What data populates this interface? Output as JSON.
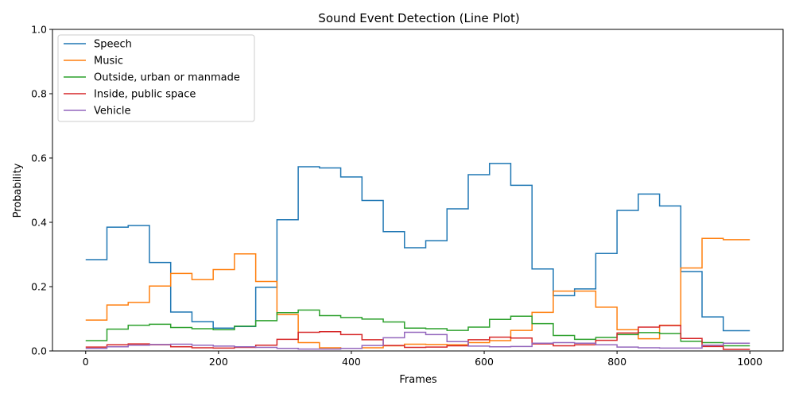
{
  "chart_data": {
    "type": "line",
    "title": "Sound Event Detection (Line Plot)",
    "xlabel": "Frames",
    "ylabel": "Probability",
    "xlim": [
      -50,
      1050
    ],
    "ylim": [
      0.0,
      1.0
    ],
    "x_ticks": [
      0,
      200,
      400,
      600,
      800,
      1000
    ],
    "x_tick_labels": [
      "0",
      "200",
      "400",
      "600",
      "800",
      "1000"
    ],
    "y_ticks": [
      0.0,
      0.2,
      0.4,
      0.6,
      0.8,
      1.0
    ],
    "y_tick_labels": [
      "0.0",
      "0.2",
      "0.4",
      "0.6",
      "0.8",
      "1.0"
    ],
    "grid": false,
    "legend_position": "top-left",
    "step_edges": [
      0,
      32,
      64,
      96,
      128,
      160,
      192,
      224,
      256,
      288,
      320,
      352,
      384,
      416,
      448,
      480,
      512,
      544,
      576,
      608,
      640,
      672,
      704,
      736,
      768,
      800,
      832,
      864,
      896,
      928,
      960,
      1000
    ],
    "series": [
      {
        "name": "Speech",
        "color": "#1f77b4",
        "values": [
          0.284,
          0.385,
          0.39,
          0.275,
          0.121,
          0.091,
          0.071,
          0.076,
          0.198,
          0.408,
          0.573,
          0.569,
          0.541,
          0.468,
          0.371,
          0.321,
          0.343,
          0.442,
          0.548,
          0.583,
          0.515,
          0.255,
          0.172,
          0.193,
          0.303,
          0.437,
          0.488,
          0.451,
          0.247,
          0.106,
          0.063
        ]
      },
      {
        "name": "Music",
        "color": "#ff7f0e",
        "values": [
          0.096,
          0.143,
          0.151,
          0.202,
          0.241,
          0.222,
          0.253,
          0.302,
          0.216,
          0.113,
          0.026,
          0.01,
          0.008,
          0.01,
          0.016,
          0.021,
          0.02,
          0.019,
          0.026,
          0.032,
          0.064,
          0.12,
          0.186,
          0.186,
          0.136,
          0.066,
          0.038,
          0.08,
          0.258,
          0.35,
          0.346
        ]
      },
      {
        "name": "Outside, urban or manmade",
        "color": "#2ca02c",
        "values": [
          0.032,
          0.068,
          0.08,
          0.083,
          0.073,
          0.069,
          0.066,
          0.077,
          0.094,
          0.119,
          0.127,
          0.11,
          0.104,
          0.099,
          0.09,
          0.071,
          0.069,
          0.064,
          0.074,
          0.098,
          0.108,
          0.085,
          0.048,
          0.036,
          0.042,
          0.051,
          0.057,
          0.054,
          0.03,
          0.026,
          0.016
        ]
      },
      {
        "name": "Inside, public space",
        "color": "#d62728",
        "values": [
          0.012,
          0.019,
          0.022,
          0.019,
          0.013,
          0.01,
          0.009,
          0.011,
          0.018,
          0.036,
          0.058,
          0.06,
          0.051,
          0.035,
          0.017,
          0.011,
          0.012,
          0.016,
          0.035,
          0.043,
          0.04,
          0.022,
          0.016,
          0.019,
          0.033,
          0.056,
          0.074,
          0.079,
          0.039,
          0.014,
          0.005
        ]
      },
      {
        "name": "Vehicle",
        "color": "#9467bd",
        "values": [
          0.008,
          0.013,
          0.018,
          0.02,
          0.021,
          0.018,
          0.015,
          0.013,
          0.011,
          0.008,
          0.006,
          0.006,
          0.008,
          0.017,
          0.041,
          0.058,
          0.051,
          0.029,
          0.015,
          0.013,
          0.014,
          0.024,
          0.026,
          0.024,
          0.019,
          0.012,
          0.01,
          0.009,
          0.009,
          0.018,
          0.024
        ]
      }
    ]
  }
}
